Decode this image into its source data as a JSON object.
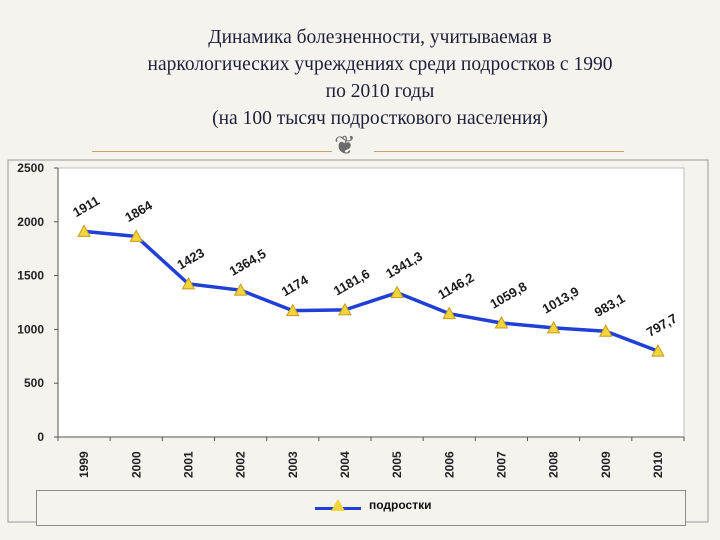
{
  "title_lines": [
    "Динамика болезненности, учитываемая в",
    "наркологических учреждениях среди подростков с 1990",
    "по 2010 годы",
    "(на 100 тысяч подросткового населения)"
  ],
  "colors": {
    "line": "#1f3fd6",
    "marker_fill": "#f2d53a",
    "marker_stroke": "#c89a1e",
    "label": "#1a1a1a"
  },
  "chart_data": {
    "type": "line",
    "categories": [
      "1999",
      "2000",
      "2001",
      "2002",
      "2003",
      "2004",
      "2005",
      "2006",
      "2007",
      "2008",
      "2009",
      "2010"
    ],
    "series": [
      {
        "name": "подростки",
        "values": [
          1911,
          1864,
          1423,
          1364.5,
          1174,
          1181.6,
          1341.3,
          1146.2,
          1059.8,
          1013.9,
          983.1,
          797.7
        ]
      }
    ],
    "data_labels": [
      "1911",
      "1864",
      "1423",
      "1364,5",
      "1174",
      "1181,6",
      "1341,3",
      "1146,2",
      "1059,8",
      "1013,9",
      "983,1",
      "797,7"
    ],
    "yticks": [
      "0",
      "500",
      "1000",
      "1500",
      "2000",
      "2500"
    ],
    "ylim": [
      0,
      2500
    ],
    "grid": false,
    "legend_position": "bottom"
  },
  "legend": {
    "label": "подростки"
  }
}
